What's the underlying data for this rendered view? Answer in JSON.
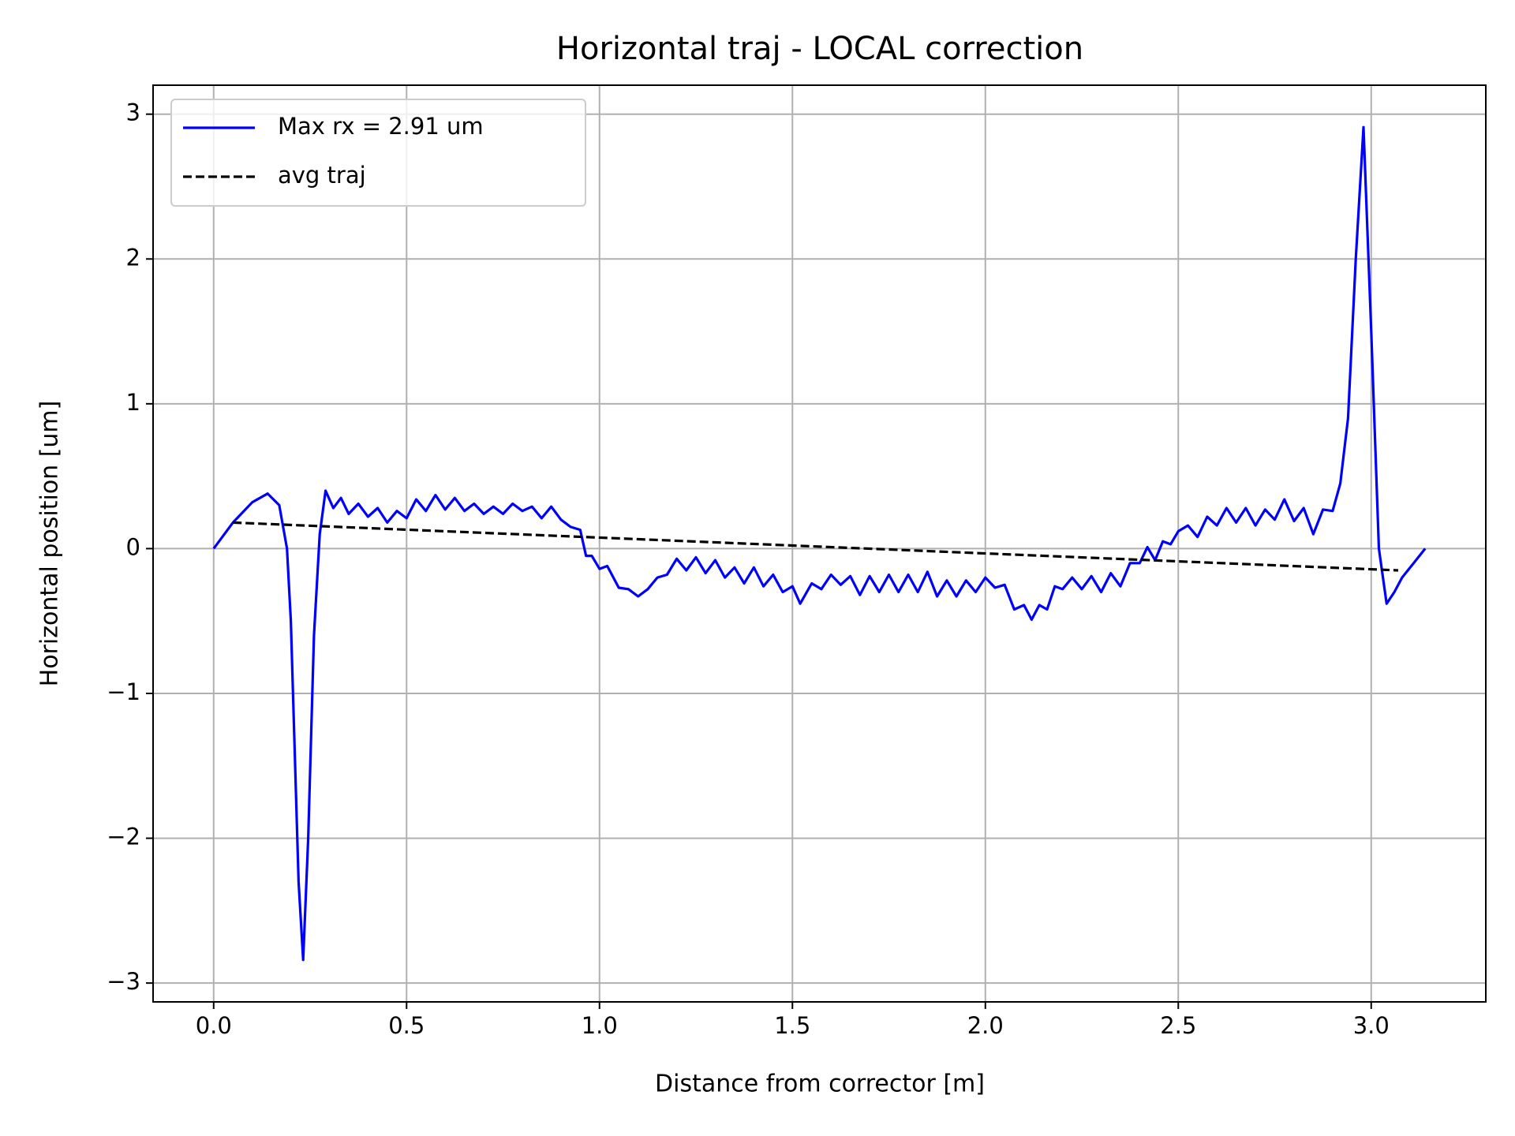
{
  "chart_data": {
    "type": "line",
    "title": "Horizontal traj - LOCAL correction",
    "x_label": "Distance from corrector [m]",
    "y_label": "Horizontal position [um]",
    "xlim": [
      -0.157,
      3.297
    ],
    "ylim": [
      -3.13,
      3.2
    ],
    "xticks": [
      {
        "value": 0,
        "label": "0.0"
      },
      {
        "value": 0.5,
        "label": "0.5"
      },
      {
        "value": 1,
        "label": "1.0"
      },
      {
        "value": 1.5,
        "label": "1.5"
      },
      {
        "value": 2,
        "label": "2.0"
      },
      {
        "value": 2.5,
        "label": "2.5"
      },
      {
        "value": 3,
        "label": "3.0"
      }
    ],
    "yticks": [
      {
        "value": -3,
        "label": "−3"
      },
      {
        "value": -2,
        "label": "−2"
      },
      {
        "value": -1,
        "label": "−1"
      },
      0,
      1,
      2,
      3
    ],
    "grid": true,
    "legend": "upper left",
    "series": [
      {
        "name": "Max rx = 2.91 um",
        "color": "#0000ff",
        "dash": false,
        "x": [
          0,
          0.05,
          0.1,
          0.14,
          0.17,
          0.19,
          0.2,
          0.21,
          0.22,
          0.232,
          0.245,
          0.26,
          0.275,
          0.29,
          0.31,
          0.33,
          0.35,
          0.375,
          0.4,
          0.425,
          0.45,
          0.475,
          0.5,
          0.525,
          0.55,
          0.575,
          0.6,
          0.625,
          0.65,
          0.675,
          0.7,
          0.725,
          0.75,
          0.775,
          0.8,
          0.825,
          0.85,
          0.875,
          0.9,
          0.925,
          0.95,
          0.965,
          0.98,
          1.0,
          1.02,
          1.05,
          1.075,
          1.1,
          1.125,
          1.15,
          1.175,
          1.2,
          1.225,
          1.25,
          1.275,
          1.3,
          1.325,
          1.35,
          1.375,
          1.4,
          1.425,
          1.45,
          1.475,
          1.5,
          1.52,
          1.55,
          1.575,
          1.6,
          1.625,
          1.65,
          1.675,
          1.7,
          1.725,
          1.75,
          1.775,
          1.8,
          1.825,
          1.85,
          1.875,
          1.9,
          1.925,
          1.95,
          1.975,
          2.0,
          2.025,
          2.05,
          2.075,
          2.1,
          2.12,
          2.14,
          2.16,
          2.18,
          2.2,
          2.225,
          2.25,
          2.275,
          2.3,
          2.325,
          2.35,
          2.375,
          2.4,
          2.42,
          2.44,
          2.46,
          2.48,
          2.5,
          2.525,
          2.55,
          2.575,
          2.6,
          2.625,
          2.65,
          2.675,
          2.7,
          2.725,
          2.75,
          2.775,
          2.8,
          2.825,
          2.85,
          2.875,
          2.9,
          2.92,
          2.94,
          2.96,
          2.98,
          3.0,
          3.02,
          3.04,
          3.06,
          3.08,
          3.11,
          3.14
        ],
        "values": [
          0,
          0.18,
          0.32,
          0.38,
          0.3,
          0.0,
          -0.5,
          -1.4,
          -2.3,
          -2.84,
          -2.0,
          -0.6,
          0.1,
          0.4,
          0.28,
          0.35,
          0.24,
          0.31,
          0.22,
          0.28,
          0.18,
          0.26,
          0.21,
          0.34,
          0.26,
          0.37,
          0.27,
          0.35,
          0.26,
          0.31,
          0.24,
          0.29,
          0.24,
          0.31,
          0.26,
          0.29,
          0.21,
          0.29,
          0.2,
          0.15,
          0.13,
          -0.05,
          -0.05,
          -0.14,
          -0.12,
          -0.27,
          -0.28,
          -0.33,
          -0.28,
          -0.2,
          -0.18,
          -0.07,
          -0.15,
          -0.06,
          -0.17,
          -0.08,
          -0.2,
          -0.13,
          -0.24,
          -0.13,
          -0.26,
          -0.18,
          -0.3,
          -0.26,
          -0.38,
          -0.24,
          -0.28,
          -0.18,
          -0.25,
          -0.19,
          -0.32,
          -0.19,
          -0.3,
          -0.18,
          -0.3,
          -0.18,
          -0.3,
          -0.16,
          -0.33,
          -0.22,
          -0.33,
          -0.22,
          -0.3,
          -0.2,
          -0.27,
          -0.25,
          -0.42,
          -0.39,
          -0.49,
          -0.39,
          -0.42,
          -0.26,
          -0.28,
          -0.2,
          -0.28,
          -0.19,
          -0.3,
          -0.17,
          -0.26,
          -0.1,
          -0.1,
          0.01,
          -0.08,
          0.05,
          0.03,
          0.12,
          0.16,
          0.08,
          0.22,
          0.16,
          0.28,
          0.18,
          0.28,
          0.16,
          0.27,
          0.2,
          0.34,
          0.19,
          0.28,
          0.1,
          0.27,
          0.26,
          0.45,
          0.9,
          2.0,
          2.91,
          1.5,
          0.0,
          -0.38,
          -0.3,
          -0.2,
          -0.1,
          0
        ]
      },
      {
        "name": "avg traj",
        "color": "#000000",
        "dash": true,
        "x": [
          0.05,
          3.07
        ],
        "values": [
          0.18,
          -0.15
        ]
      }
    ]
  }
}
